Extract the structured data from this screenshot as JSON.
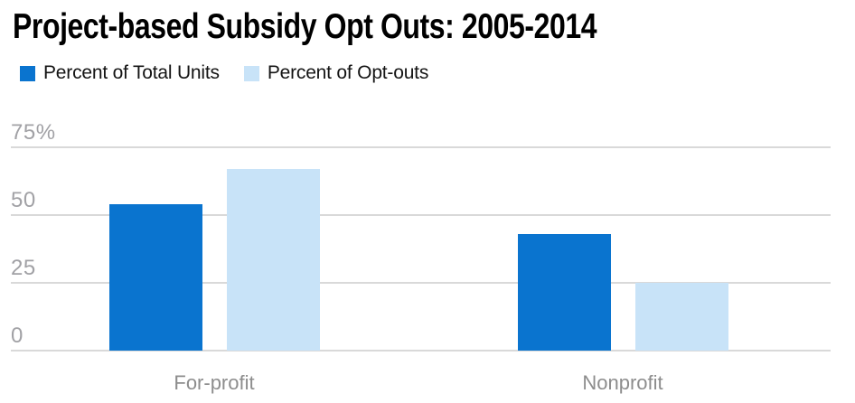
{
  "chart_data": {
    "type": "bar",
    "title": "Project-based Subsidy Opt Outs: 2005-2014",
    "categories": [
      "For-profit",
      "Nonprofit"
    ],
    "series": [
      {
        "name": "Percent of Total Units",
        "color": "#0a74cf",
        "values": [
          54,
          43
        ]
      },
      {
        "name": "Percent of Opt-outs",
        "color": "#c8e3f8",
        "values": [
          67,
          25
        ]
      }
    ],
    "y_ticks": [
      {
        "value": 75,
        "label": "75%"
      },
      {
        "value": 50,
        "label": "50"
      },
      {
        "value": 25,
        "label": "25"
      },
      {
        "value": 0,
        "label": "0"
      }
    ],
    "ylim": [
      0,
      80
    ],
    "grid": true,
    "legend_position": "top-left",
    "colors": {
      "grid_line": "#d9d9d9",
      "axis_tick_label": "#a1a1a5",
      "category_label": "#8d8d8d",
      "title": "#000000",
      "background": "#ffffff"
    }
  }
}
